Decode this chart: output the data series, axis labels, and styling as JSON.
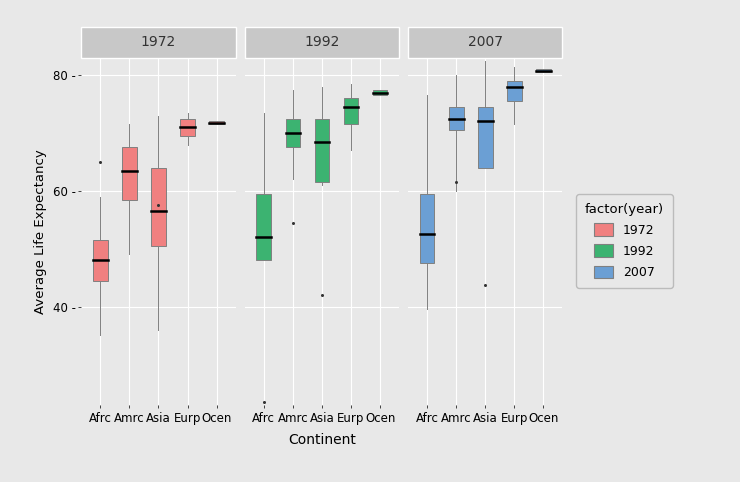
{
  "years": [
    "1972",
    "1992",
    "2007"
  ],
  "continents": [
    "Afrc",
    "Amrc",
    "Asia",
    "Eurp",
    "Ocen"
  ],
  "colors": {
    "1972": "#F08080",
    "1992": "#3CB371",
    "2007": "#6B9FD4"
  },
  "edge_color": "#808080",
  "median_color": "#000000",
  "outlier_color": "#333333",
  "box_data": {
    "1972": {
      "Afrc": {
        "whislo": 35.0,
        "q1": 44.5,
        "med": 48.0,
        "q3": 51.5,
        "whishi": 59.0,
        "fliers": [
          65.0
        ]
      },
      "Amrc": {
        "whislo": 49.0,
        "q1": 58.5,
        "med": 63.5,
        "q3": 67.5,
        "whishi": 71.5,
        "fliers": []
      },
      "Asia": {
        "whislo": 36.0,
        "q1": 50.5,
        "med": 56.5,
        "q3": 64.0,
        "whishi": 73.0,
        "fliers": [
          57.5
        ]
      },
      "Eurp": {
        "whislo": 68.0,
        "q1": 69.5,
        "med": 71.0,
        "q3": 72.5,
        "whishi": 73.5,
        "fliers": []
      },
      "Ocen": {
        "whislo": 71.5,
        "q1": 71.5,
        "med": 71.8,
        "q3": 72.0,
        "whishi": 72.0,
        "fliers": []
      }
    },
    "1992": {
      "Afrc": {
        "whislo": 48.0,
        "q1": 48.0,
        "med": 52.0,
        "q3": 59.5,
        "whishi": 73.5,
        "fliers": [
          23.5
        ]
      },
      "Amrc": {
        "whislo": 62.0,
        "q1": 67.5,
        "med": 70.0,
        "q3": 72.5,
        "whishi": 77.5,
        "fliers": [
          54.5
        ]
      },
      "Asia": {
        "whislo": 61.0,
        "q1": 61.5,
        "med": 68.5,
        "q3": 72.5,
        "whishi": 78.0,
        "fliers": [
          42.0
        ]
      },
      "Eurp": {
        "whislo": 67.0,
        "q1": 71.5,
        "med": 74.5,
        "q3": 76.0,
        "whishi": 78.5,
        "fliers": []
      },
      "Ocen": {
        "whislo": 76.5,
        "q1": 76.5,
        "med": 77.0,
        "q3": 77.5,
        "whishi": 77.5,
        "fliers": []
      }
    },
    "2007": {
      "Afrc": {
        "whislo": 39.5,
        "q1": 47.5,
        "med": 52.5,
        "q3": 59.5,
        "whishi": 76.5,
        "fliers": []
      },
      "Amrc": {
        "whislo": 60.0,
        "q1": 70.5,
        "med": 72.5,
        "q3": 74.5,
        "whishi": 80.0,
        "fliers": [
          61.5
        ]
      },
      "Asia": {
        "whislo": 64.0,
        "q1": 64.0,
        "med": 72.0,
        "q3": 74.5,
        "whishi": 82.5,
        "fliers": [
          43.8
        ]
      },
      "Eurp": {
        "whislo": 71.5,
        "q1": 75.5,
        "med": 78.0,
        "q3": 79.0,
        "whishi": 81.5,
        "fliers": []
      },
      "Ocen": {
        "whislo": 80.5,
        "q1": 80.5,
        "med": 80.7,
        "q3": 81.0,
        "whishi": 81.0,
        "fliers": []
      }
    }
  },
  "ylim": [
    23,
    83
  ],
  "yticks": [
    40,
    60,
    80
  ],
  "ytick_labels": [
    "40 -",
    "60 -",
    "80 -"
  ],
  "background_color": "#E8E8E8",
  "panel_background": "#E8E8E8",
  "grid_color": "#FFFFFF",
  "strip_bg_color": "#C8C8C8",
  "strip_text_color": "#333333",
  "ylabel": "Average Life Expectancy",
  "xlabel": "Continent",
  "legend_title": "factor(year)",
  "box_width": 0.5,
  "linewidth": 0.7,
  "median_linewidth": 1.8
}
